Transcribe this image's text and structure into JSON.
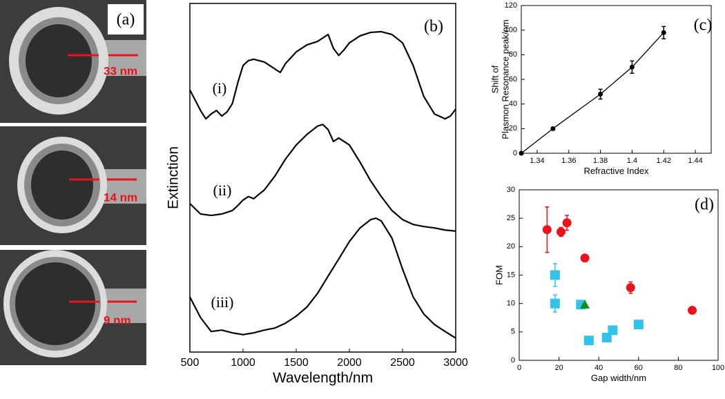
{
  "panel_a": {
    "label": "(a)",
    "gaps": [
      "33 nm",
      "14 nm",
      "9 nm"
    ]
  },
  "chart_data": [
    {
      "type": "line",
      "panel_label": "(b)",
      "xlabel": "Wavelength/nm",
      "ylabel": "Extinction",
      "xlim": [
        500,
        3000
      ],
      "xticks": [
        500,
        1000,
        1500,
        2000,
        2500,
        3000
      ],
      "ylim": [
        0,
        100
      ],
      "series": [
        {
          "name": "(i)",
          "color": "#000000",
          "x": [
            500,
            600,
            650,
            700,
            750,
            800,
            850,
            900,
            950,
            1000,
            1050,
            1100,
            1200,
            1300,
            1350,
            1400,
            1500,
            1600,
            1700,
            1750,
            1800,
            1850,
            1900,
            1950,
            2000,
            2100,
            2200,
            2300,
            2400,
            2500,
            2600,
            2700,
            2800,
            2900,
            2950,
            3000
          ],
          "values": [
            75.2,
            69.3,
            66.9,
            68.3,
            69.3,
            67.7,
            68.9,
            71.3,
            77.2,
            82.2,
            83.6,
            84.0,
            83.2,
            81.2,
            80.2,
            82.8,
            86.1,
            88.1,
            89.1,
            90.1,
            91.1,
            87.1,
            85.1,
            86.7,
            88.7,
            90.7,
            91.7,
            91.9,
            91.1,
            88.7,
            82.2,
            73.3,
            68.3,
            66.9,
            67.7,
            69.7
          ]
        },
        {
          "name": "(ii)",
          "color": "#000000",
          "x": [
            500,
            600,
            700,
            800,
            900,
            950,
            1000,
            1050,
            1100,
            1200,
            1300,
            1400,
            1500,
            1600,
            1700,
            1750,
            1800,
            1850,
            1900,
            2000,
            2100,
            2200,
            2300,
            2400,
            2500,
            2600,
            2700,
            2800,
            2900,
            3000
          ],
          "values": [
            42.6,
            39.6,
            39.2,
            39.6,
            40.6,
            42.0,
            43.6,
            44.6,
            44.0,
            46.5,
            50.5,
            55.4,
            59.4,
            62.4,
            64.8,
            65.3,
            63.8,
            60.4,
            61.4,
            59.4,
            54.5,
            49.1,
            44.6,
            40.6,
            38.0,
            36.6,
            36.0,
            35.6,
            35.0,
            34.7
          ]
        },
        {
          "name": "(iii)",
          "color": "#000000",
          "x": [
            500,
            600,
            700,
            800,
            900,
            1000,
            1100,
            1200,
            1300,
            1400,
            1500,
            1600,
            1700,
            1800,
            1900,
            2000,
            2100,
            2200,
            2250,
            2300,
            2400,
            2500,
            2600,
            2700,
            2800,
            2900,
            3000
          ],
          "values": [
            15.8,
            9.9,
            5.9,
            6.3,
            5.5,
            5.0,
            5.5,
            6.3,
            6.9,
            8.3,
            10.3,
            12.9,
            16.8,
            21.8,
            26.7,
            31.7,
            35.6,
            38.0,
            38.4,
            37.6,
            32.7,
            23.8,
            15.8,
            10.9,
            7.9,
            5.9,
            4.0
          ]
        }
      ]
    },
    {
      "type": "line",
      "panel_label": "(c)",
      "xlabel": "Refractive Index",
      "ylabel": [
        "Shift of",
        "Plasmon Resonance peak/nm"
      ],
      "xlim": [
        1.33,
        1.45
      ],
      "xticks": [
        1.34,
        1.36,
        1.38,
        1.4,
        1.42,
        1.44
      ],
      "ylim": [
        0,
        120
      ],
      "yticks": [
        0,
        20,
        40,
        60,
        80,
        100,
        120
      ],
      "markers": true,
      "series": [
        {
          "color": "#000000",
          "x": [
            1.33,
            1.35,
            1.38,
            1.4,
            1.42
          ],
          "values": [
            0,
            20,
            48,
            70,
            98
          ],
          "errors": [
            0,
            1,
            4,
            5,
            5
          ]
        }
      ]
    },
    {
      "type": "scatter",
      "panel_label": "(d)",
      "xlabel": "Gap width/nm",
      "ylabel": "FOM",
      "xlim": [
        0,
        100
      ],
      "xticks": [
        0,
        20,
        40,
        60,
        80,
        100
      ],
      "ylim": [
        0,
        30
      ],
      "yticks": [
        0,
        5,
        10,
        15,
        20,
        25,
        30
      ],
      "series": [
        {
          "marker": "circle",
          "color": "#e8141c",
          "x": [
            14,
            21,
            24,
            33,
            56,
            87
          ],
          "values": [
            23,
            22.6,
            24.2,
            18,
            12.8,
            8.8
          ],
          "errors": [
            4,
            0.8,
            1.3,
            0.6,
            1,
            0.5
          ]
        },
        {
          "marker": "square",
          "color": "#33c2e8",
          "x": [
            18,
            18,
            31,
            35,
            44,
            47,
            60
          ],
          "values": [
            15,
            10,
            9.8,
            3.5,
            4,
            5.3,
            6.3
          ],
          "errors": [
            2,
            1.5,
            0.5,
            0.3,
            0.5,
            0.7,
            0.5
          ]
        },
        {
          "marker": "triangle",
          "color": "#1a8a1a",
          "x": [
            33
          ],
          "values": [
            9.8
          ],
          "errors": [
            0
          ]
        }
      ]
    }
  ]
}
